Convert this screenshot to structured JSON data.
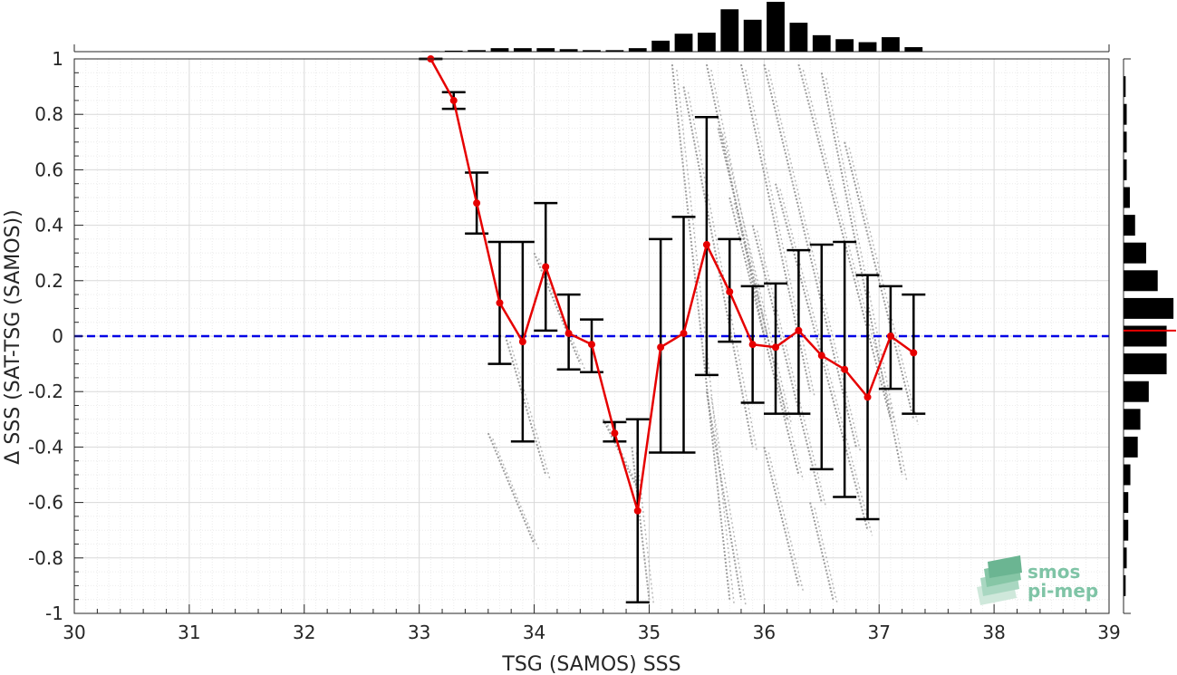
{
  "chart_data": {
    "type": "scatter",
    "xlabel": "TSG (SAMOS) SSS",
    "ylabel": "Δ SSS (SAT-TSG (SAMOS))",
    "xlim": [
      30,
      39
    ],
    "ylim": [
      -1,
      1
    ],
    "x_ticks": [
      "30",
      "31",
      "32",
      "33",
      "34",
      "35",
      "36",
      "37",
      "38",
      "39"
    ],
    "y_ticks": [
      "1",
      "0.8",
      "0.6",
      "0.4",
      "0.2",
      "0",
      "-0.2",
      "-0.4",
      "-0.6",
      "-0.8",
      "-1"
    ],
    "grid": true,
    "reference_line": {
      "y": 0,
      "style": "dashed",
      "color": "#0000e6"
    },
    "series": [
      {
        "type": "line-with-errorbars",
        "color": "#e60000",
        "points": [
          {
            "x": 33.1,
            "y": 1.0,
            "lo": 1.0,
            "hi": 1.0
          },
          {
            "x": 33.3,
            "y": 0.85,
            "lo": 0.82,
            "hi": 0.88
          },
          {
            "x": 33.5,
            "y": 0.48,
            "lo": 0.37,
            "hi": 0.59
          },
          {
            "x": 33.7,
            "y": 0.12,
            "lo": -0.1,
            "hi": 0.34
          },
          {
            "x": 33.9,
            "y": -0.02,
            "lo": -0.38,
            "hi": 0.34
          },
          {
            "x": 34.1,
            "y": 0.25,
            "lo": 0.02,
            "hi": 0.48
          },
          {
            "x": 34.3,
            "y": 0.01,
            "lo": -0.12,
            "hi": 0.15
          },
          {
            "x": 34.5,
            "y": -0.03,
            "lo": -0.13,
            "hi": 0.06
          },
          {
            "x": 34.7,
            "y": -0.35,
            "lo": -0.38,
            "hi": -0.31
          },
          {
            "x": 34.9,
            "y": -0.63,
            "lo": -0.96,
            "hi": -0.3
          },
          {
            "x": 35.1,
            "y": -0.04,
            "lo": -0.42,
            "hi": 0.35
          },
          {
            "x": 35.3,
            "y": 0.01,
            "lo": -0.42,
            "hi": 0.43
          },
          {
            "x": 35.5,
            "y": 0.33,
            "lo": -0.14,
            "hi": 0.79
          },
          {
            "x": 35.7,
            "y": 0.16,
            "lo": -0.02,
            "hi": 0.35
          },
          {
            "x": 35.9,
            "y": -0.03,
            "lo": -0.24,
            "hi": 0.18
          },
          {
            "x": 36.1,
            "y": -0.04,
            "lo": -0.28,
            "hi": 0.19
          },
          {
            "x": 36.3,
            "y": 0.02,
            "lo": -0.28,
            "hi": 0.31
          },
          {
            "x": 36.5,
            "y": -0.07,
            "lo": -0.48,
            "hi": 0.33
          },
          {
            "x": 36.7,
            "y": -0.12,
            "lo": -0.58,
            "hi": 0.34
          },
          {
            "x": 36.9,
            "y": -0.22,
            "lo": -0.66,
            "hi": 0.22
          },
          {
            "x": 37.1,
            "y": 0.0,
            "lo": -0.19,
            "hi": 0.18
          },
          {
            "x": 37.3,
            "y": -0.06,
            "lo": -0.28,
            "hi": 0.15
          }
        ]
      }
    ],
    "scatter_background": {
      "color": "#8c8c8c",
      "streaks": [
        {
          "x0": 33.6,
          "y0": -0.35,
          "x1": 34.0,
          "y1": -0.75
        },
        {
          "x0": 33.75,
          "y0": 0.0,
          "x1": 34.1,
          "y1": -0.5
        },
        {
          "x0": 34.0,
          "y0": 0.3,
          "x1": 34.4,
          "y1": -0.1
        },
        {
          "x0": 34.6,
          "y0": -0.3,
          "x1": 34.9,
          "y1": -0.55
        },
        {
          "x0": 34.85,
          "y0": -0.4,
          "x1": 35.0,
          "y1": -0.95
        },
        {
          "x0": 35.2,
          "y0": 0.98,
          "x1": 35.7,
          "y1": -0.95
        },
        {
          "x0": 35.3,
          "y0": 0.9,
          "x1": 35.9,
          "y1": -0.4
        },
        {
          "x0": 35.5,
          "y0": 0.98,
          "x1": 36.0,
          "y1": 0.0
        },
        {
          "x0": 35.6,
          "y0": 0.75,
          "x1": 36.2,
          "y1": -0.3
        },
        {
          "x0": 35.7,
          "y0": 0.5,
          "x1": 36.3,
          "y1": -0.5
        },
        {
          "x0": 35.8,
          "y0": 0.98,
          "x1": 36.4,
          "y1": -0.2
        },
        {
          "x0": 35.9,
          "y0": 0.4,
          "x1": 36.5,
          "y1": -0.6
        },
        {
          "x0": 36.0,
          "y0": 0.98,
          "x1": 36.8,
          "y1": -0.4
        },
        {
          "x0": 36.1,
          "y0": 0.55,
          "x1": 36.9,
          "y1": -0.7
        },
        {
          "x0": 36.3,
          "y0": 0.98,
          "x1": 37.1,
          "y1": -0.3
        },
        {
          "x0": 36.5,
          "y0": 0.95,
          "x1": 37.2,
          "y1": -0.5
        },
        {
          "x0": 36.7,
          "y0": 0.7,
          "x1": 37.3,
          "y1": -0.3
        },
        {
          "x0": 35.5,
          "y0": -0.2,
          "x1": 35.8,
          "y1": -0.95
        },
        {
          "x0": 36.0,
          "y0": -0.4,
          "x1": 36.3,
          "y1": -0.9
        },
        {
          "x0": 36.4,
          "y0": -0.6,
          "x1": 36.6,
          "y1": -0.95
        }
      ]
    },
    "top_histogram": {
      "x_centers": [
        33.1,
        33.3,
        33.5,
        33.7,
        33.9,
        34.1,
        34.3,
        34.5,
        34.7,
        34.9,
        35.1,
        35.3,
        35.5,
        35.7,
        35.9,
        36.1,
        36.3,
        36.5,
        36.7,
        36.9,
        37.1,
        37.3
      ],
      "values": [
        0.01,
        0.02,
        0.03,
        0.07,
        0.07,
        0.07,
        0.05,
        0.03,
        0.03,
        0.07,
        0.22,
        0.36,
        0.38,
        0.85,
        0.64,
        1.0,
        0.58,
        0.33,
        0.25,
        0.19,
        0.29,
        0.09
      ]
    },
    "right_histogram": {
      "y_centers": [
        0.9,
        0.8,
        0.7,
        0.6,
        0.5,
        0.4,
        0.3,
        0.2,
        0.1,
        0.0,
        -0.1,
        -0.2,
        -0.3,
        -0.4,
        -0.5,
        -0.6,
        -0.7,
        -0.8,
        -0.9
      ],
      "values": [
        0.04,
        0.06,
        0.06,
        0.06,
        0.12,
        0.22,
        0.43,
        0.65,
        0.95,
        0.82,
        0.82,
        0.48,
        0.32,
        0.27,
        0.13,
        0.09,
        0.09,
        0.06,
        0.04
      ],
      "marker_y": 0.02,
      "marker_color": "#e60000"
    }
  },
  "logo": {
    "line1": "smos",
    "line2": "pi-mep"
  }
}
